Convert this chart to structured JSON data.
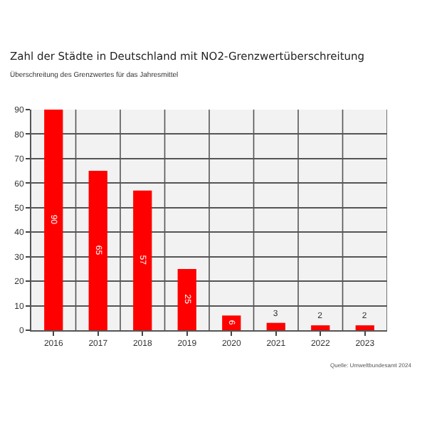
{
  "chart_data": {
    "type": "bar",
    "title": "Zahl der Städte in Deutschland mit NO2-Grenzwertüberschreitung",
    "subtitle": "Überschreitung des Grenzwertes für das Jahresmittel",
    "categories": [
      "2016",
      "2017",
      "2018",
      "2019",
      "2020",
      "2021",
      "2022",
      "2023"
    ],
    "values": [
      90,
      65,
      57,
      25,
      6,
      3,
      2,
      2
    ],
    "color": "#ff0000",
    "ylim": [
      0,
      90
    ],
    "yticks": [
      0,
      10,
      20,
      30,
      40,
      50,
      60,
      70,
      80,
      90
    ],
    "grid": true,
    "legend": false,
    "data_labels": true,
    "annotations": [
      "Quelle: Umweltbundesamt 2024"
    ]
  }
}
